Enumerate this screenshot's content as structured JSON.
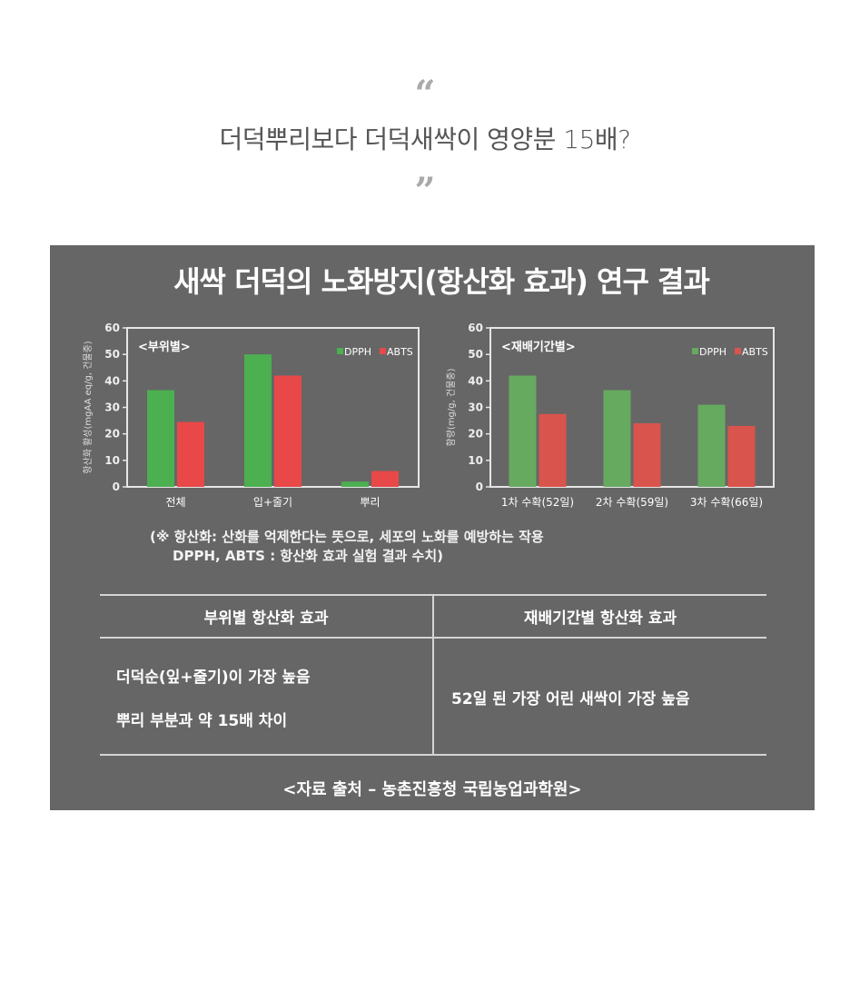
{
  "header": {
    "open_quote": "“",
    "headline": "더덕뿌리보다 더덕새싹이 영양분 15배?",
    "close_quote": "”"
  },
  "panel": {
    "title": "새싹 더덕의 노화방지(항산화 효과) 연구 결과",
    "note_line1": "(※ 항산화: 산화를 억제한다는 뜻으로, 세포의 노화를 예방하는 작용",
    "note_line2": "DPPH, ABTS : 항산화 효과 실험 결과 수치)",
    "table": {
      "headers": [
        "부위별 항산화 효과",
        "재배기간별 항산화 효과"
      ],
      "left_rows": [
        "더덕순(잎+줄기)이 가장 높음",
        "뿌리 부분과 약 15배 차이"
      ],
      "right_rows": [
        "52일 된 가장 어린 새싹이 가장 높음"
      ]
    },
    "source": "<자료 출처 – 농촌진흥청 국립농업과학원>"
  },
  "colors": {
    "background": "#666666",
    "dpph_left": "#4caf50",
    "abts_left": "#e84848",
    "dpph_right": "#66aa60",
    "abts_right": "#d9544c"
  },
  "chart_data": [
    {
      "type": "bar",
      "title": "<부위별>",
      "categories": [
        "전체",
        "입+줄기",
        "뿌리"
      ],
      "series": [
        {
          "name": "DPPH",
          "values": [
            36.5,
            50,
            2
          ]
        },
        {
          "name": "ABTS",
          "values": [
            24.5,
            42,
            6
          ]
        }
      ],
      "xlabel": "",
      "ylabel": "항산화 활성(mgAA eq/g, 건물중)",
      "ylim": [
        0,
        60
      ],
      "yticks": [
        0,
        10,
        20,
        30,
        40,
        50,
        60
      ],
      "legend_position": "top-right",
      "grid": false
    },
    {
      "type": "bar",
      "title": "<재배기간별>",
      "categories": [
        "1차 수확(52일)",
        "2차 수확(59일)",
        "3차 수확(66일)"
      ],
      "series": [
        {
          "name": "DPPH",
          "values": [
            42,
            36.5,
            31
          ]
        },
        {
          "name": "ABTS",
          "values": [
            27.5,
            24,
            23
          ]
        }
      ],
      "xlabel": "",
      "ylabel": "함량(mg/g, 건물중)",
      "ylim": [
        0,
        60
      ],
      "yticks": [
        0,
        10,
        20,
        30,
        40,
        50,
        60
      ],
      "legend_position": "top-right",
      "grid": false
    }
  ]
}
